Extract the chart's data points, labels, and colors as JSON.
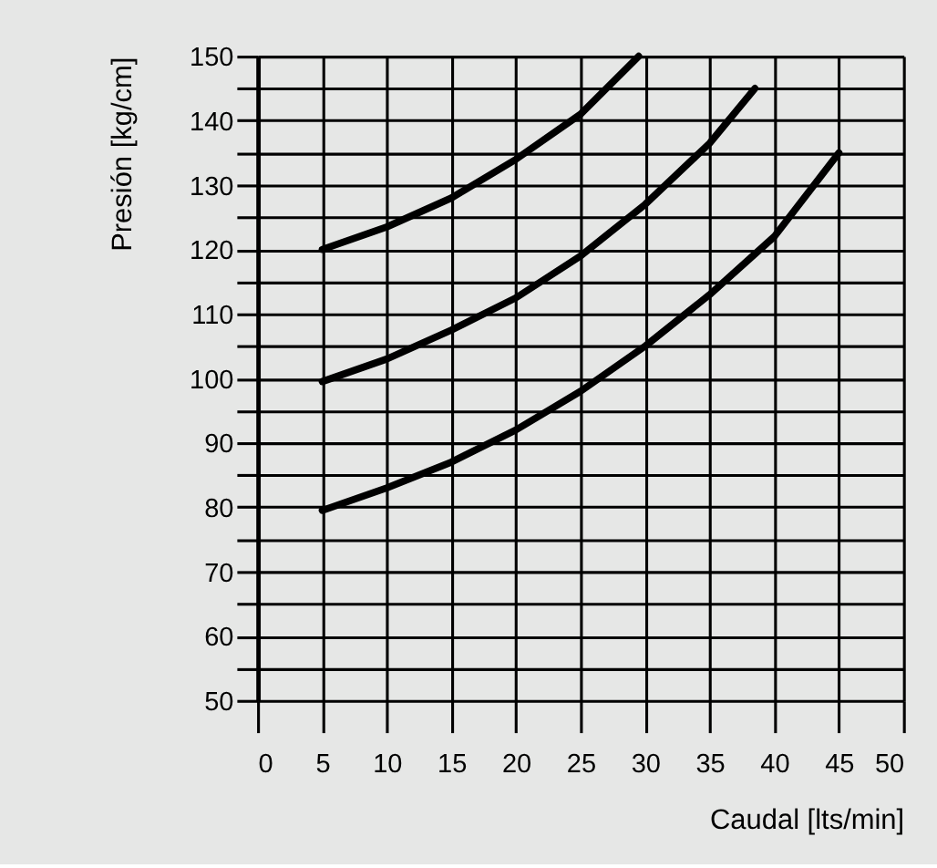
{
  "chart_data": {
    "type": "line",
    "xlabel": "Caudal [lts/min]",
    "ylabel": "Presión [kg/cm]",
    "xlim": [
      0,
      50
    ],
    "xticks": [
      0,
      5,
      10,
      15,
      20,
      25,
      30,
      35,
      40,
      45,
      50
    ],
    "ylim": [
      50,
      150
    ],
    "yticks": [
      50,
      {
        "value": 55,
        "label": null
      },
      60,
      {
        "value": 65,
        "label": null
      },
      70,
      {
        "value": 75,
        "label": null
      },
      80,
      {
        "value": 85,
        "label": null
      },
      90,
      {
        "value": 95,
        "label": null
      },
      100,
      {
        "value": 105,
        "label": null
      },
      110,
      {
        "value": 115,
        "label": null
      },
      120,
      {
        "value": 125,
        "label": null
      },
      130,
      {
        "value": 135,
        "label": null
      },
      140,
      {
        "value": 145,
        "label": null
      },
      150
    ],
    "grid": true,
    "marker": "none",
    "line_style": "solid",
    "legend": false,
    "series": [
      {
        "color": "#000000",
        "x": [
          5,
          10,
          15,
          20,
          25,
          29.5
        ],
        "values": [
          120,
          123.5,
          128,
          134,
          141,
          150
        ]
      },
      {
        "color": "#000000",
        "x": [
          5,
          10,
          15,
          20,
          25,
          30,
          35,
          38.5
        ],
        "values": [
          99.5,
          103,
          107.5,
          112.5,
          119,
          127,
          136.5,
          145
        ]
      },
      {
        "color": "#000000",
        "x": [
          5,
          10,
          15,
          20,
          25,
          30,
          35,
          40,
          45
        ],
        "values": [
          79.5,
          83,
          87,
          92,
          98,
          105,
          113,
          122,
          135
        ]
      }
    ]
  }
}
